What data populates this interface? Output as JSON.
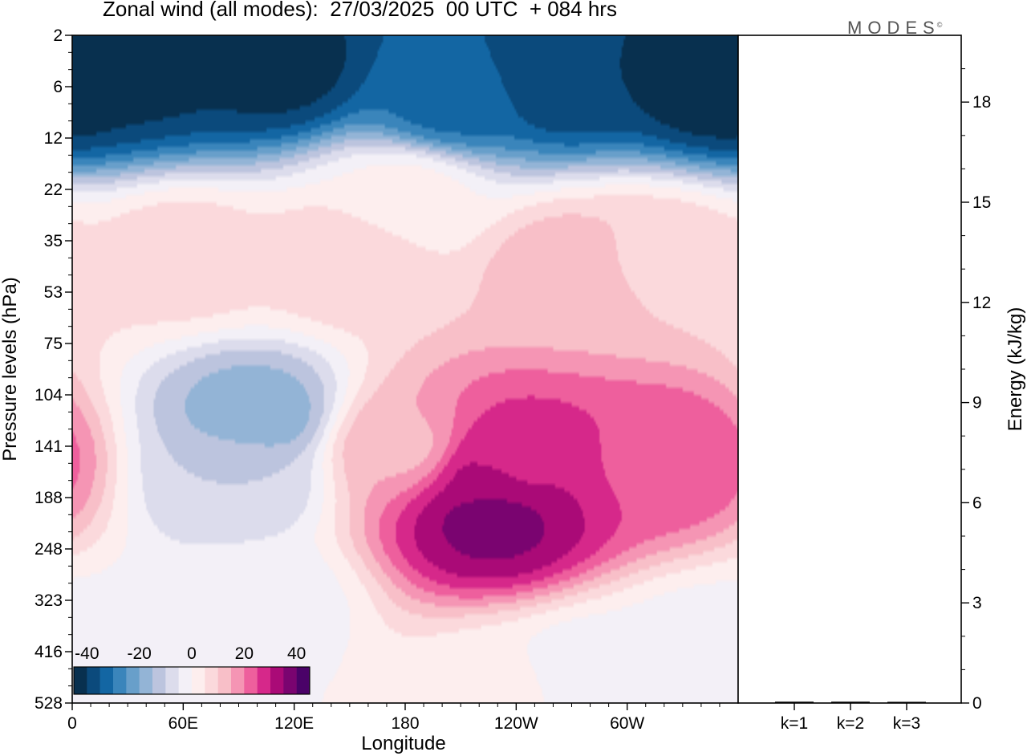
{
  "header": {
    "title": "Zonal wind (all modes):  27/03/2025  00 UTC  + 084 hrs",
    "brand": "MODES",
    "brand_mark": "©"
  },
  "chart_data": [
    {
      "type": "heatmap",
      "title": "Zonal wind (all modes):  27/03/2025  00 UTC  + 084 hrs",
      "xlabel": "Longitude",
      "ylabel": "Pressure levels (hPa)",
      "x_ticks": [
        {
          "lon": 0,
          "label": "0"
        },
        {
          "lon": 60,
          "label": "60E"
        },
        {
          "lon": 120,
          "label": "120E"
        },
        {
          "lon": 180,
          "label": "180"
        },
        {
          "lon": 240,
          "label": "120W"
        },
        {
          "lon": 300,
          "label": "60W"
        }
      ],
      "xlim": [
        0,
        360
      ],
      "y_levels": [
        "2",
        "6",
        "12",
        "22",
        "35",
        "53",
        "75",
        "104",
        "141",
        "188",
        "248",
        "323",
        "416",
        "528"
      ],
      "y_scale": "level index (top 2 hPa, bottom 528 hPa)",
      "colorbar": {
        "ticks": [
          "-40",
          "-20",
          "0",
          "20",
          "40"
        ],
        "min": -45,
        "max": 45,
        "step": 5,
        "colors": [
          "#08304f",
          "#0b4a7c",
          "#1366a3",
          "#3a85bb",
          "#689fca",
          "#93b4d6",
          "#bcc4de",
          "#dcdcec",
          "#f3f0f7",
          "#fdeeee",
          "#fbd9dc",
          "#f8bfc8",
          "#f595b4",
          "#ee5f9d",
          "#d6288a",
          "#aa0a77",
          "#7a0470",
          "#4a0268"
        ],
        "placement": "lower-left inside plot"
      },
      "features": [
        {
          "lon": 40,
          "lev": 0.55,
          "value": -42
        },
        {
          "lon": 110,
          "lev": 0.6,
          "value": -42
        },
        {
          "lon": 265,
          "lev": 0.8,
          "value": -40
        },
        {
          "lon": 350,
          "lev": 0.9,
          "value": -44
        },
        {
          "lon": 205,
          "lev": 1.2,
          "value": -32
        },
        {
          "lon": 180,
          "lev": 3.2,
          "value": 2
        },
        {
          "lon": 60,
          "lev": 4.3,
          "value": 8
        },
        {
          "lon": 150,
          "lev": 4.3,
          "value": 9
        },
        {
          "lon": 270,
          "lev": 4.5,
          "value": 13
        },
        {
          "lon": 315,
          "lev": 4.3,
          "value": 9
        },
        {
          "lon": 100,
          "lev": 7.4,
          "value": -18
        },
        {
          "lon": 90,
          "lev": 8.6,
          "value": -10
        },
        {
          "lon": 178,
          "lev": 8.0,
          "value": 14
        },
        {
          "lon": 227,
          "lev": 8.6,
          "value": 32
        },
        {
          "lon": 227,
          "lev": 9.4,
          "value": 37
        },
        {
          "lon": 234,
          "lev": 8.3,
          "value": 27
        },
        {
          "lon": 320,
          "lev": 8.3,
          "value": 24
        },
        {
          "lon": 100,
          "lev": 11.0,
          "value": -3
        },
        {
          "lon": 230,
          "lev": 12.8,
          "value": 2
        },
        {
          "lon": 280,
          "lev": 12.5,
          "value": -4
        },
        {
          "lon": 30,
          "lev": 12.5,
          "value": -4
        },
        {
          "lon": 340,
          "lev": 12.0,
          "value": -3
        }
      ]
    },
    {
      "type": "bar",
      "categories": [
        "k=1",
        "k=2",
        "k=3"
      ],
      "values": [
        0.04,
        0.04,
        0.02
      ],
      "ylabel": "Energy (kJ/kg)",
      "y_ticks": [
        "0",
        "3",
        "6",
        "9",
        "12",
        "15",
        "18"
      ],
      "ylim": [
        0,
        20
      ],
      "y_axis_side": "right"
    }
  ]
}
